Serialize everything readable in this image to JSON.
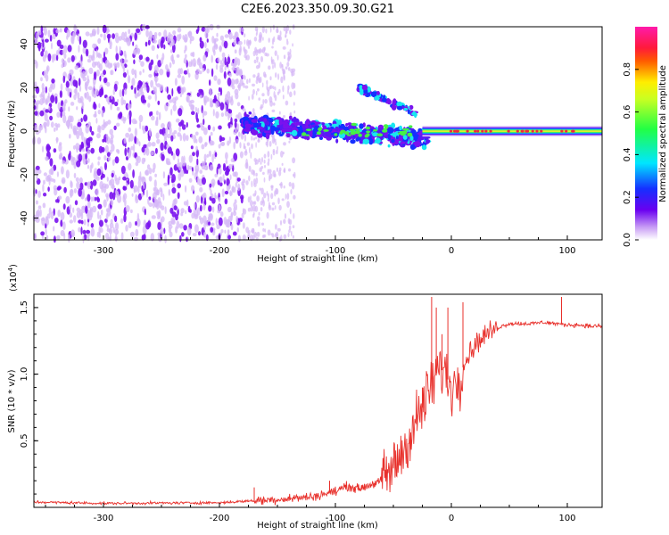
{
  "title": "C2E6.2023.350.09.30.G21",
  "colors": {
    "snr_line": "#e8302b",
    "dots_purple": "#7a12ee",
    "dots_light": "#d6b8f7",
    "core_blue": "#1530ff",
    "core_cyan": "#19e6f0",
    "core_green": "#46f046",
    "core_yellow": "#e8f030",
    "core_red": "#f0283c"
  },
  "chart_data": [
    {
      "type": "heatmap",
      "title": "C2E6.2023.350.09.30.G21",
      "xlabel": "Height of straight line (km)",
      "ylabel": "Frequency (Hz)",
      "xlim": [
        -360,
        130
      ],
      "ylim": [
        -50,
        48
      ],
      "xticks": [
        -300,
        -200,
        -100,
        0,
        100
      ],
      "yticks": [
        -40,
        -20,
        0,
        20,
        40
      ],
      "colorbar": {
        "label": "Normalized spectral amplitude",
        "range": [
          0.0,
          1.0
        ],
        "ticks": [
          "0.0",
          "0.2",
          "0.4",
          "0.6",
          "0.8"
        ],
        "colormap": "rainbow (white-purple-blue-cyan-green-yellow-red-magenta)"
      },
      "features": {
        "noise_region_x": [
          -360,
          -180
        ],
        "sparse_region_x": [
          -180,
          -135
        ],
        "doppler_band_x": [
          -180,
          -20
        ],
        "doppler_center_hz": 0,
        "doppler_spread_hz": 10,
        "upper_branch": {
          "x": [
            -80,
            -30
          ],
          "y": [
            20,
            8
          ]
        },
        "steady_line_x": [
          -25,
          130
        ],
        "steady_line_hz": 0
      }
    },
    {
      "type": "line",
      "xlabel": "Height of straight line (km)",
      "ylabel": "SNR (10 * v/v)",
      "scale_note": "(x10^4)",
      "xlim": [
        -360,
        130
      ],
      "ylim": [
        0,
        1.6
      ],
      "xticks": [
        -300,
        -200,
        -100,
        0,
        100
      ],
      "yticks": [
        0.5,
        1.0,
        1.5
      ],
      "series": [
        {
          "x": [
            -360,
            -300,
            -200,
            -170,
            -150,
            -120,
            -100,
            -90,
            -80,
            -60,
            -50,
            -40,
            -30,
            -20,
            -15,
            -10,
            -5,
            0,
            5,
            10,
            15,
            20,
            30,
            40,
            50,
            60,
            70,
            80,
            90,
            100,
            110,
            120,
            130
          ],
          "y": [
            0.04,
            0.03,
            0.035,
            0.05,
            0.06,
            0.08,
            0.12,
            0.16,
            0.14,
            0.2,
            0.3,
            0.45,
            0.65,
            0.85,
            0.95,
            1.05,
            1.0,
            0.9,
            0.95,
            1.05,
            1.15,
            1.22,
            1.3,
            1.35,
            1.38,
            1.38,
            1.38,
            1.39,
            1.38,
            1.37,
            1.37,
            1.36,
            1.36
          ]
        }
      ],
      "spikes": [
        {
          "x": -170,
          "y": 0.15
        },
        {
          "x": -105,
          "y": 0.2
        },
        {
          "x": -50,
          "y": 0.38
        },
        {
          "x": -35,
          "y": 0.5
        },
        {
          "x": -25,
          "y": 0.9
        },
        {
          "x": -17,
          "y": 1.58
        },
        {
          "x": -13,
          "y": 1.5
        },
        {
          "x": -8,
          "y": 1.3
        },
        {
          "x": -3,
          "y": 1.5
        },
        {
          "x": 10,
          "y": 1.54
        },
        {
          "x": 95,
          "y": 1.58
        }
      ]
    }
  ]
}
